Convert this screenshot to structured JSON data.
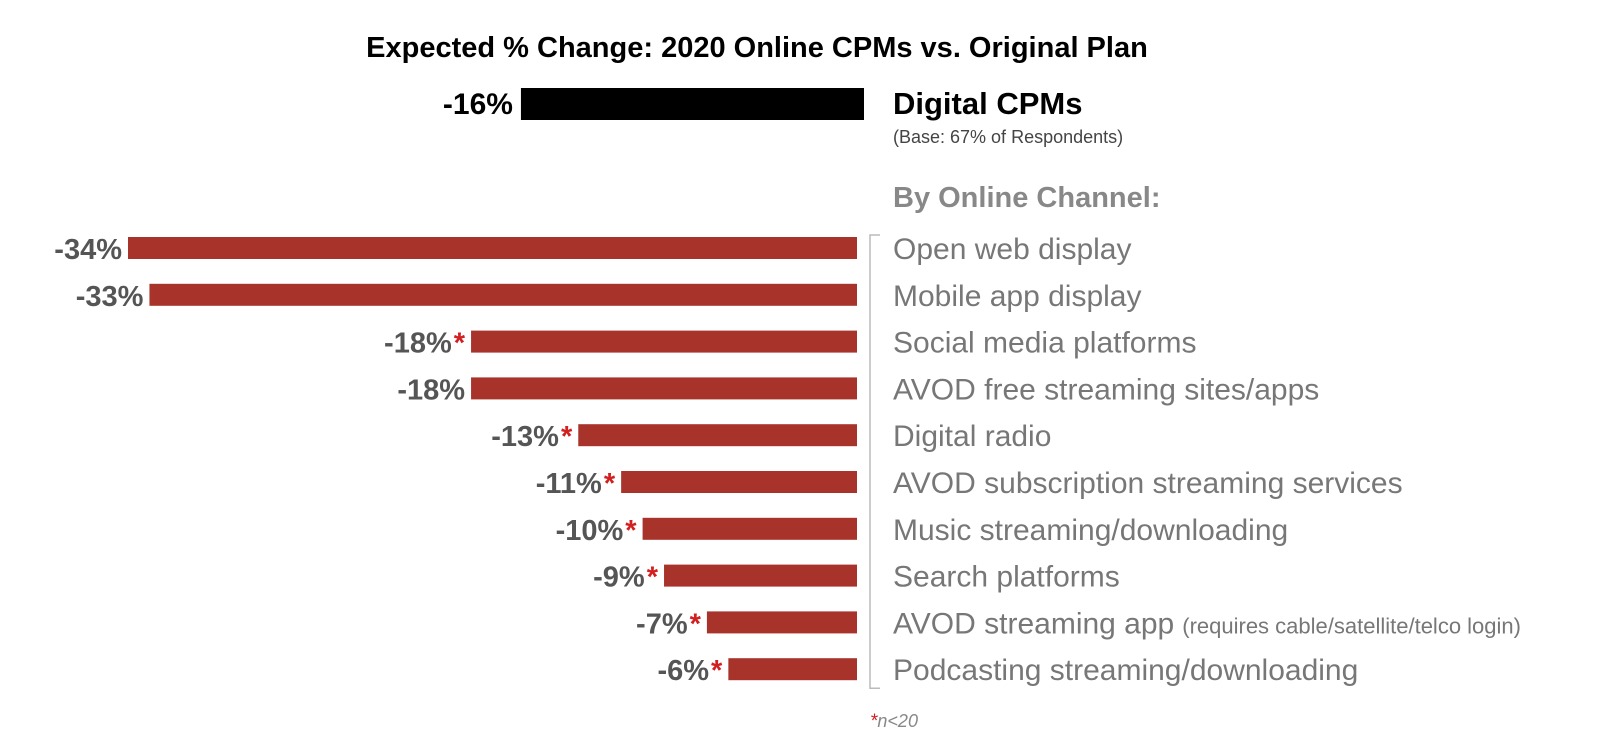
{
  "chart_data": {
    "type": "bar",
    "orientation": "horizontal",
    "title": "Expected % Change: 2020 Online CPMs vs. Original Plan",
    "overall": {
      "label": "Digital CPMs",
      "value": -16,
      "value_label": "-16%",
      "note": "(Base:  67% of Respondents)",
      "color": "#000000"
    },
    "section_heading": "By Online Channel:",
    "bar_color": "#a8332a",
    "asterisk_color": "#d21f1f",
    "categories": [
      {
        "label": "Open web display",
        "note": "",
        "value": -34,
        "value_label": "-34%",
        "flag": ""
      },
      {
        "label": "Mobile app display",
        "note": "",
        "value": -33,
        "value_label": "-33%",
        "flag": ""
      },
      {
        "label": "Social media platforms",
        "note": "",
        "value": -18,
        "value_label": "-18%",
        "flag": "*"
      },
      {
        "label": "AVOD free streaming sites/apps",
        "note": "",
        "value": -18,
        "value_label": "-18%",
        "flag": ""
      },
      {
        "label": "Digital radio",
        "note": "",
        "value": -13,
        "value_label": "-13%",
        "flag": "*"
      },
      {
        "label": "AVOD subscription streaming services",
        "note": "",
        "value": -11,
        "value_label": "-11%",
        "flag": "*"
      },
      {
        "label": "Music streaming/downloading",
        "note": "",
        "value": -10,
        "value_label": "-10%",
        "flag": "*"
      },
      {
        "label": "Search platforms",
        "note": "",
        "value": -9,
        "value_label": "-9%",
        "flag": "*"
      },
      {
        "label": "AVOD streaming app",
        "note": "(requires cable/satellite/telco login)",
        "value": -7,
        "value_label": "-7%",
        "flag": "*"
      },
      {
        "label": "Podcasting streaming/downloading",
        "note": "",
        "value": -6,
        "value_label": "-6%",
        "flag": "*"
      }
    ],
    "footnote": {
      "star": "*",
      "text": "n<20"
    },
    "xlim": [
      -34,
      0
    ],
    "grid": false,
    "legend": "none"
  }
}
